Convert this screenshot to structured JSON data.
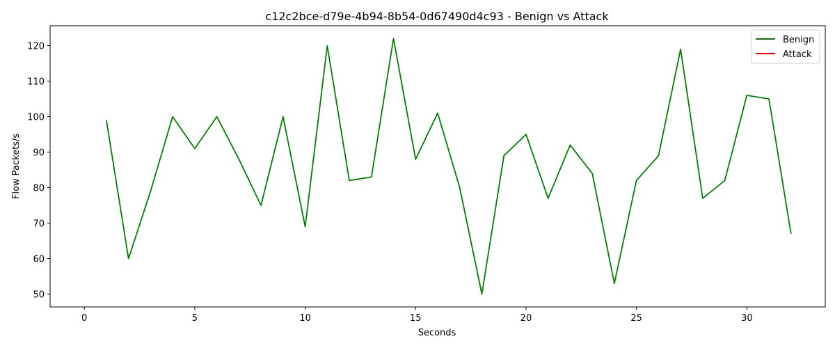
{
  "chart_data": {
    "type": "line",
    "title": "c12c2bce-d79e-4b94-8b54-0d67490d4c93 - Benign vs Attack",
    "xlabel": "Seconds",
    "ylabel": "Flow Packets/s",
    "xlim": [
      -1.55,
      33.55
    ],
    "ylim": [
      46.4,
      125.6
    ],
    "xticks": [
      0,
      5,
      10,
      15,
      20,
      25,
      30
    ],
    "yticks": [
      50,
      60,
      70,
      80,
      90,
      100,
      110,
      120
    ],
    "grid": false,
    "legend_position": "top-right",
    "series": [
      {
        "name": "Benign",
        "color": "#008000",
        "x": [
          1,
          2,
          3,
          4,
          5,
          6,
          7,
          8,
          9,
          10,
          11,
          12,
          13,
          14,
          15,
          16,
          17,
          18,
          19,
          20,
          21,
          22,
          23,
          24,
          25,
          26,
          27,
          28,
          29,
          30,
          31,
          32
        ],
        "y": [
          99,
          60,
          79,
          100,
          91,
          100,
          88,
          75,
          100,
          69,
          120,
          82,
          83,
          122,
          88,
          101,
          80,
          50,
          89,
          95,
          77,
          92,
          84,
          53,
          82,
          89,
          119,
          77,
          82,
          106,
          105,
          67
        ]
      },
      {
        "name": "Attack",
        "color": "#ff0000",
        "x": [],
        "y": []
      }
    ]
  }
}
